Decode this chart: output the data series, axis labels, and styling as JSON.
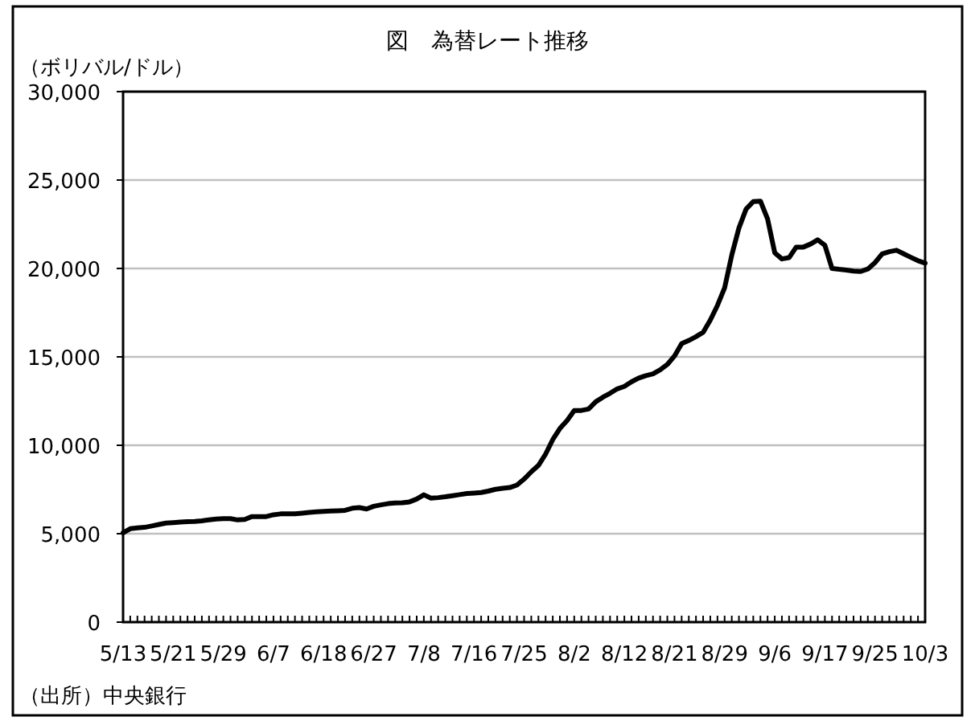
{
  "chart_data": {
    "type": "line",
    "title": "図　為替レート推移",
    "ylabel": "（ボリバル/ドル）",
    "categories": [
      "5/13",
      null,
      null,
      null,
      null,
      null,
      null,
      "5/21",
      null,
      null,
      null,
      null,
      null,
      null,
      "5/29",
      null,
      null,
      null,
      null,
      null,
      null,
      "6/7",
      null,
      null,
      null,
      null,
      null,
      null,
      "6/18",
      null,
      null,
      null,
      null,
      null,
      null,
      "6/27",
      null,
      null,
      null,
      null,
      null,
      null,
      "7/8",
      null,
      null,
      null,
      null,
      null,
      null,
      "7/16",
      null,
      null,
      null,
      null,
      null,
      null,
      "7/25",
      null,
      null,
      null,
      null,
      null,
      null,
      "8/2",
      null,
      null,
      null,
      null,
      null,
      null,
      "8/12",
      null,
      null,
      null,
      null,
      null,
      null,
      "8/21",
      null,
      null,
      null,
      null,
      null,
      null,
      "8/29",
      null,
      null,
      null,
      null,
      null,
      null,
      "9/6",
      null,
      null,
      null,
      null,
      null,
      null,
      "9/17",
      null,
      null,
      null,
      null,
      null,
      null,
      "9/25",
      null,
      null,
      null,
      null,
      null,
      null,
      "10/3"
    ],
    "values": [
      5050,
      5280,
      5330,
      5360,
      5440,
      5520,
      5600,
      5630,
      5660,
      5680,
      5690,
      5730,
      5780,
      5830,
      5850,
      5850,
      5780,
      5810,
      5970,
      5970,
      5970,
      6070,
      6120,
      6120,
      6120,
      6160,
      6200,
      6240,
      6260,
      6280,
      6300,
      6320,
      6440,
      6480,
      6400,
      6550,
      6630,
      6700,
      6740,
      6750,
      6800,
      6960,
      7200,
      7010,
      7040,
      7090,
      7150,
      7210,
      7270,
      7300,
      7330,
      7410,
      7510,
      7570,
      7610,
      7750,
      8090,
      8500,
      8860,
      9500,
      10320,
      10950,
      11400,
      11970,
      11970,
      12050,
      12460,
      12720,
      12940,
      13190,
      13330,
      13590,
      13800,
      13940,
      14040,
      14270,
      14570,
      15050,
      15750,
      15930,
      16140,
      16390,
      17080,
      17910,
      18900,
      20760,
      22290,
      23360,
      23780,
      23810,
      22800,
      20890,
      20540,
      20610,
      21210,
      21210,
      21380,
      21620,
      21310,
      20000,
      19950,
      19910,
      19850,
      19830,
      19970,
      20330,
      20820,
      20950,
      21030,
      20830,
      20630,
      20440,
      20300
    ],
    "color": "#000000",
    "ylim": [
      0,
      30000
    ],
    "yticks": [
      0,
      {
        "value": 5000,
        "label": "5,000"
      },
      {
        "value": 10000,
        "label": "10,000"
      },
      {
        "value": 15000,
        "label": "15,000"
      },
      {
        "value": 20000,
        "label": "20,000"
      },
      {
        "value": 25000,
        "label": "25,000"
      },
      {
        "value": 30000,
        "label": "30,000"
      }
    ],
    "grid": "y",
    "marker": "none",
    "line_style": "solid",
    "annotations": [
      "（出所）中央銀行"
    ]
  }
}
